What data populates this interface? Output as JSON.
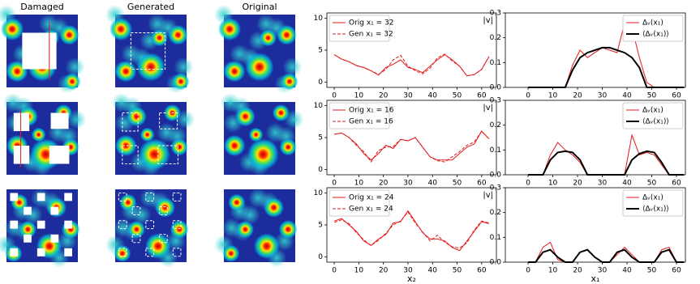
{
  "image_grid": {
    "column_titles": [
      "Damaged",
      "Generated",
      "Original"
    ]
  },
  "chart_data": [
    {
      "type": "line",
      "annotation": "|v|",
      "legend": "upper left",
      "xlim": [
        -3,
        66
      ],
      "ylim": [
        -0.8,
        10.8
      ],
      "xticks": [
        0,
        10,
        20,
        30,
        40,
        50,
        60
      ],
      "yticks": [
        0,
        5,
        10
      ],
      "x": [
        0,
        3,
        6,
        9,
        12,
        15,
        18,
        21,
        24,
        27,
        30,
        33,
        36,
        39,
        42,
        45,
        48,
        51,
        54,
        57,
        60,
        63
      ],
      "series": [
        {
          "name": "Orig x₁ = 32",
          "color": "#e41a1c",
          "linestyle": "solid",
          "values": [
            4.3,
            3.6,
            3.2,
            2.6,
            2.3,
            1.8,
            1.1,
            2.3,
            2.8,
            3.5,
            2.3,
            2.0,
            1.5,
            2.5,
            3.5,
            4.3,
            3.5,
            2.5,
            1.0,
            1.2,
            2.0,
            4.0
          ]
        },
        {
          "name": "Gen x₁ = 32",
          "color": "#e41a1c",
          "linestyle": "dashed",
          "values": [
            4.3,
            3.6,
            3.2,
            2.6,
            2.3,
            1.8,
            1.2,
            2.0,
            3.5,
            4.2,
            2.5,
            1.8,
            1.3,
            2.2,
            3.8,
            4.4,
            3.3,
            2.5,
            1.0,
            1.2,
            2.0,
            4.0
          ]
        }
      ]
    },
    {
      "type": "line",
      "legend": "upper right",
      "xlim": [
        -9.2,
        63.6
      ],
      "ylim": [
        0,
        0.3
      ],
      "xticks": [
        0,
        10,
        20,
        30,
        40,
        50,
        60
      ],
      "yticks": [
        {
          "value": 0,
          "label": "0.0"
        },
        {
          "value": 0.1,
          "label": "0.1"
        },
        {
          "value": 0.2,
          "label": "0.2"
        },
        {
          "value": 0.3,
          "label": "0.3"
        }
      ],
      "x": [
        0,
        3,
        6,
        9,
        12,
        15,
        18,
        21,
        24,
        27,
        30,
        33,
        36,
        39,
        42,
        45,
        48,
        51,
        54,
        57,
        60,
        63
      ],
      "series": [
        {
          "name": "Δᵥ(x₁)",
          "color": "#e41a1c",
          "linewidth": 1,
          "values": [
            0,
            0,
            0,
            0,
            0,
            0,
            0.09,
            0.15,
            0.12,
            0.14,
            0.16,
            0.15,
            0.14,
            0.26,
            0.24,
            0.12,
            0.02,
            0,
            0,
            0,
            0,
            0
          ]
        },
        {
          "name": "⟨Δᵥ(x₁)⟩",
          "color": "#000000",
          "linewidth": 2,
          "values": [
            0,
            0,
            0,
            0,
            0,
            0,
            0.07,
            0.12,
            0.14,
            0.15,
            0.16,
            0.16,
            0.15,
            0.14,
            0.12,
            0.08,
            0,
            0,
            0,
            0,
            0,
            0
          ]
        }
      ]
    },
    {
      "type": "line",
      "annotation": "|v|",
      "legend": "upper left",
      "xlim": [
        -3,
        66
      ],
      "ylim": [
        -0.8,
        10.8
      ],
      "xticks": [
        0,
        10,
        20,
        30,
        40,
        50,
        60
      ],
      "yticks": [
        0,
        5,
        10
      ],
      "x": [
        0,
        3,
        6,
        9,
        12,
        15,
        18,
        21,
        24,
        27,
        30,
        33,
        36,
        39,
        42,
        45,
        48,
        51,
        54,
        57,
        60,
        63
      ],
      "series": [
        {
          "name": "Orig x₁ = 16",
          "color": "#e41a1c",
          "linestyle": "solid",
          "values": [
            5.5,
            5.7,
            5.0,
            4.0,
            2.5,
            1.5,
            2.5,
            3.8,
            3.3,
            4.7,
            4.5,
            5.0,
            3.5,
            2.0,
            1.5,
            1.5,
            1.5,
            2.5,
            3.5,
            4.0,
            6.0,
            4.8
          ]
        },
        {
          "name": "Gen x₁ = 16",
          "color": "#e41a1c",
          "linestyle": "dashed",
          "values": [
            5.5,
            5.7,
            5.0,
            3.8,
            2.8,
            1.2,
            3.0,
            3.5,
            3.6,
            4.7,
            4.5,
            5.0,
            3.5,
            2.0,
            1.4,
            1.2,
            2.0,
            2.8,
            3.8,
            4.3,
            6.0,
            4.8
          ]
        }
      ]
    },
    {
      "type": "line",
      "legend": "upper right",
      "xlim": [
        -9.2,
        63.6
      ],
      "ylim": [
        0,
        0.3
      ],
      "xticks": [
        0,
        10,
        20,
        30,
        40,
        50,
        60
      ],
      "yticks": [
        {
          "value": 0,
          "label": "0.0"
        },
        {
          "value": 0.1,
          "label": "0.1"
        },
        {
          "value": 0.2,
          "label": "0.2"
        },
        {
          "value": 0.3,
          "label": "0.3"
        }
      ],
      "x": [
        0,
        3,
        6,
        9,
        12,
        15,
        18,
        21,
        24,
        27,
        30,
        33,
        36,
        39,
        42,
        45,
        48,
        51,
        54,
        57,
        60,
        63
      ],
      "series": [
        {
          "name": "Δᵥ(x₁)",
          "color": "#e41a1c",
          "linewidth": 1,
          "values": [
            0,
            0,
            0,
            0.08,
            0.13,
            0.1,
            0.08,
            0.05,
            0,
            0,
            0,
            0,
            0,
            0,
            0.16,
            0.08,
            0.09,
            0.08,
            0.04,
            0,
            0,
            0
          ]
        },
        {
          "name": "⟨Δᵥ(x₁)⟩",
          "color": "#000000",
          "linewidth": 2,
          "values": [
            0,
            0,
            0,
            0.06,
            0.09,
            0.095,
            0.09,
            0.06,
            0,
            0,
            0,
            0,
            0,
            0,
            0.06,
            0.085,
            0.095,
            0.09,
            0.05,
            0,
            0,
            0
          ]
        }
      ]
    },
    {
      "type": "line",
      "annotation": "|v|",
      "legend": "upper left",
      "xlim": [
        -3,
        66
      ],
      "ylim": [
        -0.8,
        10.8
      ],
      "xticks": [
        0,
        10,
        20,
        30,
        40,
        50,
        60
      ],
      "yticks": [
        0,
        5,
        10
      ],
      "xlabel": "x₂",
      "x": [
        0,
        3,
        6,
        9,
        12,
        15,
        18,
        21,
        24,
        27,
        30,
        33,
        36,
        39,
        42,
        45,
        48,
        51,
        54,
        57,
        60,
        63
      ],
      "series": [
        {
          "name": "Orig x₁ = 24",
          "color": "#e41a1c",
          "linestyle": "solid",
          "values": [
            5.6,
            6.0,
            5.0,
            4.0,
            2.5,
            1.8,
            2.8,
            3.5,
            5.3,
            5.5,
            7.2,
            5.5,
            3.8,
            2.8,
            2.8,
            2.5,
            1.5,
            1.0,
            2.5,
            4.0,
            5.5,
            5.2
          ]
        },
        {
          "name": "Gen x₁ = 24",
          "color": "#e41a1c",
          "linestyle": "dashed",
          "values": [
            5.4,
            5.8,
            5.2,
            3.8,
            2.7,
            1.8,
            2.6,
            3.7,
            5.0,
            5.6,
            7.0,
            5.3,
            3.9,
            2.5,
            3.4,
            2.3,
            1.6,
            1.4,
            2.2,
            4.2,
            5.6,
            5.3
          ]
        }
      ]
    },
    {
      "type": "line",
      "legend": "upper right",
      "xlim": [
        -9.2,
        63.6
      ],
      "ylim": [
        0,
        0.3
      ],
      "xticks": [
        0,
        10,
        20,
        30,
        40,
        50,
        60
      ],
      "xlabel": "x₁",
      "yticks": [
        {
          "value": 0,
          "label": "0.0"
        },
        {
          "value": 0.1,
          "label": "0.1"
        },
        {
          "value": 0.2,
          "label": "0.2"
        },
        {
          "value": 0.3,
          "label": "0.3"
        }
      ],
      "x": [
        0,
        3,
        6,
        9,
        12,
        15,
        18,
        21,
        24,
        27,
        30,
        33,
        36,
        39,
        42,
        45,
        48,
        51,
        54,
        57,
        60,
        63
      ],
      "series": [
        {
          "name": "Δᵥ(x₁)",
          "color": "#e41a1c",
          "linewidth": 1,
          "values": [
            0,
            0,
            0.06,
            0.08,
            0.01,
            0,
            0,
            0.04,
            0.05,
            0.02,
            0,
            0,
            0.03,
            0.06,
            0.03,
            0,
            0,
            0,
            0.05,
            0.06,
            0,
            0
          ]
        },
        {
          "name": "⟨Δᵥ(x₁)⟩",
          "color": "#000000",
          "linewidth": 2,
          "values": [
            0,
            0,
            0.04,
            0.05,
            0.02,
            0,
            0,
            0.04,
            0.05,
            0.02,
            0,
            0,
            0.04,
            0.05,
            0.02,
            0,
            0,
            0,
            0.04,
            0.05,
            0,
            0
          ]
        }
      ]
    }
  ]
}
